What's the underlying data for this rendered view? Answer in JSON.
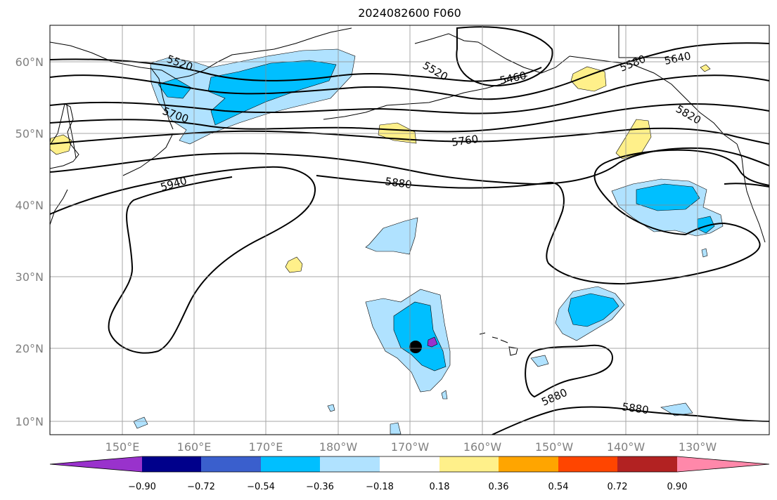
{
  "title": "2024082600 F060",
  "map": {
    "lat_ticks": [
      "10°N",
      "20°N",
      "30°N",
      "40°N",
      "50°N",
      "60°N"
    ],
    "lon_ticks": [
      "150°E",
      "160°E",
      "170°E",
      "180°W",
      "170°W",
      "160°W",
      "150°W",
      "140°W",
      "130°W"
    ],
    "contour_labels": [
      "5520",
      "5520",
      "5460",
      "5580",
      "5640",
      "5700",
      "5820",
      "5760",
      "5940",
      "5880",
      "5880",
      "5880"
    ],
    "marker": {
      "name": "storm-center-marker",
      "lon": -170.5,
      "lat": 20.2,
      "color": "#000000"
    },
    "grid": true
  },
  "colorbar": {
    "ticks": [
      "−0.90",
      "−0.72",
      "−0.54",
      "−0.36",
      "−0.18",
      "0.18",
      "0.36",
      "0.54",
      "0.72",
      "0.90"
    ],
    "colors": [
      "#9932cc",
      "#00008b",
      "#3a5fcd",
      "#00bfff",
      "#b0e2ff",
      "#ffffff",
      "#fff08a",
      "#ffa500",
      "#ff4500",
      "#b22222",
      "#ff88aa"
    ]
  }
}
